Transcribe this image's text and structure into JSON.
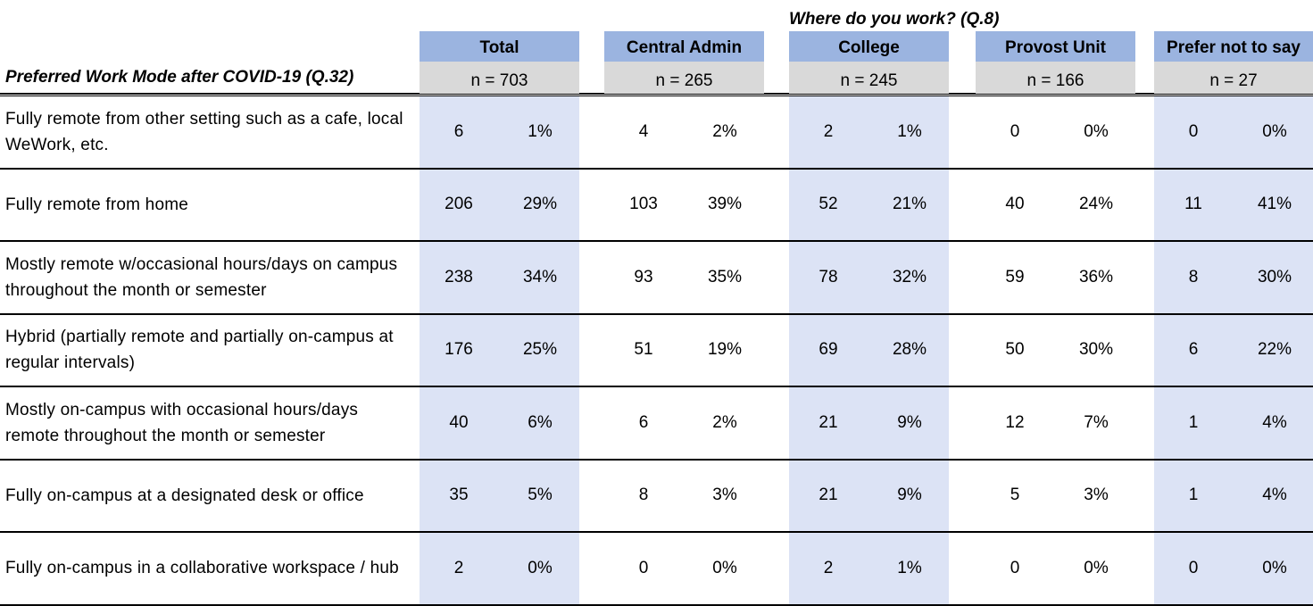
{
  "table": {
    "supertitle": "Where do you work? (Q.8)",
    "row_header": "Preferred Work Mode after COVID-19 (Q.32)",
    "columns": [
      {
        "label": "Total",
        "n": "n = 703",
        "shaded": true
      },
      {
        "label": "Central Admin",
        "n": "n = 265",
        "shaded": false
      },
      {
        "label": "College",
        "n": "n = 245",
        "shaded": true
      },
      {
        "label": "Provost Unit",
        "n": "n = 166",
        "shaded": false
      },
      {
        "label": "Prefer not to say",
        "n": "n = 27",
        "shaded": true
      }
    ],
    "rows": [
      {
        "label": "Fully remote from other setting such as a cafe, local WeWork, etc.",
        "cells": [
          [
            "6",
            "1%"
          ],
          [
            "4",
            "2%"
          ],
          [
            "2",
            "1%"
          ],
          [
            "0",
            "0%"
          ],
          [
            "0",
            "0%"
          ]
        ]
      },
      {
        "label": "Fully remote from home",
        "cells": [
          [
            "206",
            "29%"
          ],
          [
            "103",
            "39%"
          ],
          [
            "52",
            "21%"
          ],
          [
            "40",
            "24%"
          ],
          [
            "11",
            "41%"
          ]
        ]
      },
      {
        "label": "Mostly remote w/occasional hours/days on campus throughout the month or semester",
        "cells": [
          [
            "238",
            "34%"
          ],
          [
            "93",
            "35%"
          ],
          [
            "78",
            "32%"
          ],
          [
            "59",
            "36%"
          ],
          [
            "8",
            "30%"
          ]
        ]
      },
      {
        "label": "Hybrid (partially remote and partially on-campus at regular intervals)",
        "cells": [
          [
            "176",
            "25%"
          ],
          [
            "51",
            "19%"
          ],
          [
            "69",
            "28%"
          ],
          [
            "50",
            "30%"
          ],
          [
            "6",
            "22%"
          ]
        ]
      },
      {
        "label": "Mostly on-campus with occasional hours/days remote throughout the month or semester",
        "cells": [
          [
            "40",
            "6%"
          ],
          [
            "6",
            "2%"
          ],
          [
            "21",
            "9%"
          ],
          [
            "12",
            "7%"
          ],
          [
            "1",
            "4%"
          ]
        ]
      },
      {
        "label": "Fully on-campus at a designated desk or office",
        "cells": [
          [
            "35",
            "5%"
          ],
          [
            "8",
            "3%"
          ],
          [
            "21",
            "9%"
          ],
          [
            "5",
            "3%"
          ],
          [
            "1",
            "4%"
          ]
        ]
      },
      {
        "label": "Fully on-campus in a collaborative workspace / hub",
        "cells": [
          [
            "2",
            "0%"
          ],
          [
            "0",
            "0%"
          ],
          [
            "2",
            "1%"
          ],
          [
            "0",
            "0%"
          ],
          [
            "0",
            "0%"
          ]
        ]
      }
    ]
  },
  "colors": {
    "header_fill": "#9bb4e0",
    "n_fill": "#d9d9d9",
    "column_shade": "#dce3f5",
    "rule": "#000000"
  },
  "chart_data": {
    "type": "table",
    "title": "Where do you work? (Q.8)",
    "row_dimension": "Preferred Work Mode after COVID-19 (Q.32)",
    "categories": [
      "Fully remote from other setting such as a cafe, local WeWork, etc.",
      "Fully remote from home",
      "Mostly remote w/occasional hours/days on campus throughout the month or semester",
      "Hybrid (partially remote and partially on-campus at regular intervals)",
      "Mostly on-campus with occasional hours/days remote throughout the month or semester",
      "Fully on-campus at a designated desk or office",
      "Fully on-campus in a collaborative workspace / hub"
    ],
    "series": [
      {
        "name": "Total",
        "n": 703,
        "counts": [
          6,
          206,
          238,
          176,
          40,
          35,
          2
        ],
        "percents": [
          1,
          29,
          34,
          25,
          6,
          5,
          0
        ]
      },
      {
        "name": "Central Admin",
        "n": 265,
        "counts": [
          4,
          103,
          93,
          51,
          6,
          8,
          0
        ],
        "percents": [
          2,
          39,
          35,
          19,
          2,
          3,
          0
        ]
      },
      {
        "name": "College",
        "n": 245,
        "counts": [
          2,
          52,
          78,
          69,
          21,
          21,
          2
        ],
        "percents": [
          1,
          21,
          32,
          28,
          9,
          9,
          1
        ]
      },
      {
        "name": "Provost Unit",
        "n": 166,
        "counts": [
          0,
          40,
          59,
          50,
          12,
          5,
          0
        ],
        "percents": [
          0,
          24,
          36,
          30,
          7,
          3,
          0
        ]
      },
      {
        "name": "Prefer not to say",
        "n": 27,
        "counts": [
          0,
          11,
          8,
          6,
          1,
          1,
          0
        ],
        "percents": [
          0,
          41,
          30,
          22,
          4,
          4,
          0
        ]
      }
    ]
  }
}
